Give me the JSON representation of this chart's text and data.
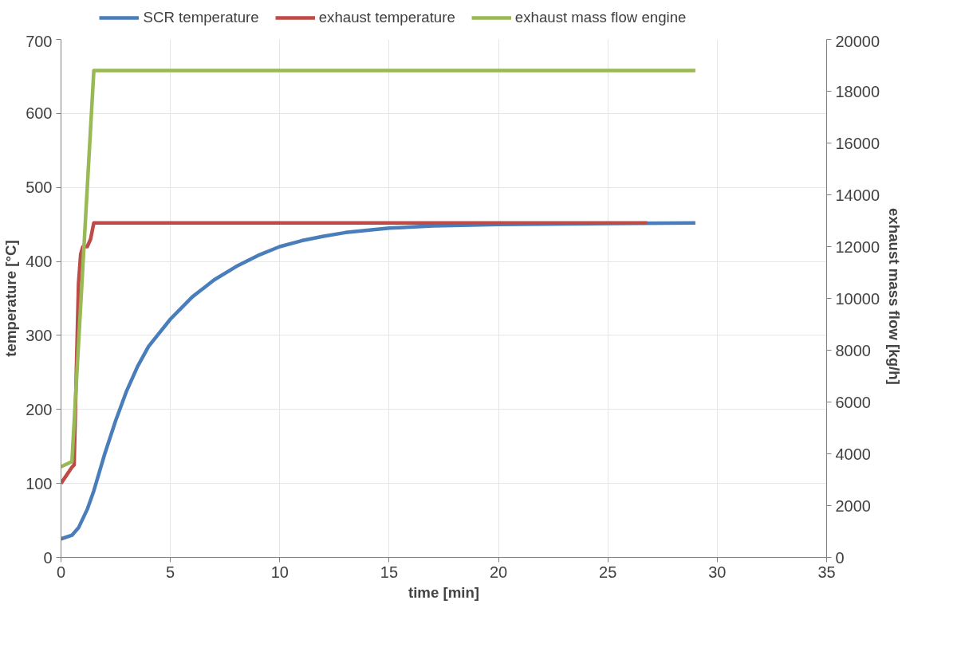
{
  "chart_data": {
    "type": "line",
    "xlabel": "time [min]",
    "ylabel": "temperature [°C]",
    "y2label": "exhaust mass flow  [kg/h]",
    "xlim": [
      0,
      35
    ],
    "xticks": [
      0,
      5,
      10,
      15,
      20,
      25,
      30,
      35
    ],
    "ylim": [
      0,
      700
    ],
    "yticks": [
      0,
      100,
      200,
      300,
      400,
      500,
      600,
      700
    ],
    "y2lim": [
      0,
      20000
    ],
    "y2ticks": [
      0,
      2000,
      4000,
      6000,
      8000,
      10000,
      12000,
      14000,
      16000,
      18000,
      20000
    ],
    "grid": true,
    "legend": "top",
    "line_style": "solid",
    "marker": "none",
    "series": [
      {
        "name": "SCR temperature",
        "color": "#4a7ebb",
        "x": [
          0,
          0.5,
          0.8,
          1.2,
          1.5,
          2,
          2.5,
          3,
          3.5,
          4,
          5,
          6,
          7,
          8,
          9,
          10,
          11,
          12,
          13,
          15,
          17,
          20,
          29
        ],
        "values": [
          25,
          30,
          40,
          65,
          90,
          140,
          185,
          225,
          258,
          285,
          322,
          352,
          375,
          393,
          408,
          420,
          428,
          434,
          439,
          445,
          448,
          450,
          452
        ]
      },
      {
        "name": "exhaust temperature",
        "color": "#be4b48",
        "x": [
          0,
          0.5,
          0.6,
          0.7,
          0.8,
          0.9,
          1.0,
          1.2,
          1.35,
          1.5,
          26.8
        ],
        "values": [
          100,
          122,
          125,
          250,
          370,
          410,
          420,
          420,
          430,
          452,
          452
        ]
      },
      {
        "name": "exhaust mass flow engine",
        "color": "#98b954",
        "axis": "y2",
        "x": [
          0,
          0.5,
          1.5,
          29
        ],
        "values": [
          3500,
          3700,
          18800,
          18800
        ]
      }
    ]
  }
}
